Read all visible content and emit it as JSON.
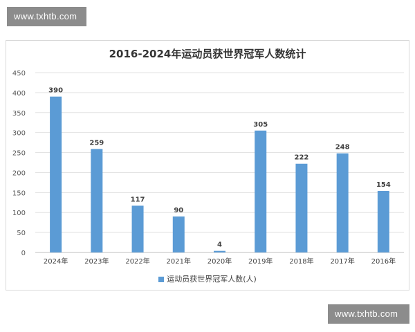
{
  "watermark_top": "www.txhtb.com",
  "watermark_bottom": "www.txhtb.com",
  "chart_data": {
    "type": "bar",
    "title": "2016-2024年运动员获世界冠军人数统计",
    "categories": [
      "2024年",
      "2023年",
      "2022年",
      "2021年",
      "2020年",
      "2019年",
      "2018年",
      "2017年",
      "2016年"
    ],
    "series": [
      {
        "name": "运动员获世界冠军人数(人)",
        "values": [
          390,
          259,
          117,
          90,
          4,
          305,
          222,
          248,
          154
        ]
      }
    ],
    "ylim": [
      0,
      450
    ],
    "yticks": [
      0,
      50,
      100,
      150,
      200,
      250,
      300,
      350,
      400,
      450
    ],
    "grid": true,
    "legend": "bottom",
    "bar_color": "#5b9bd5"
  }
}
